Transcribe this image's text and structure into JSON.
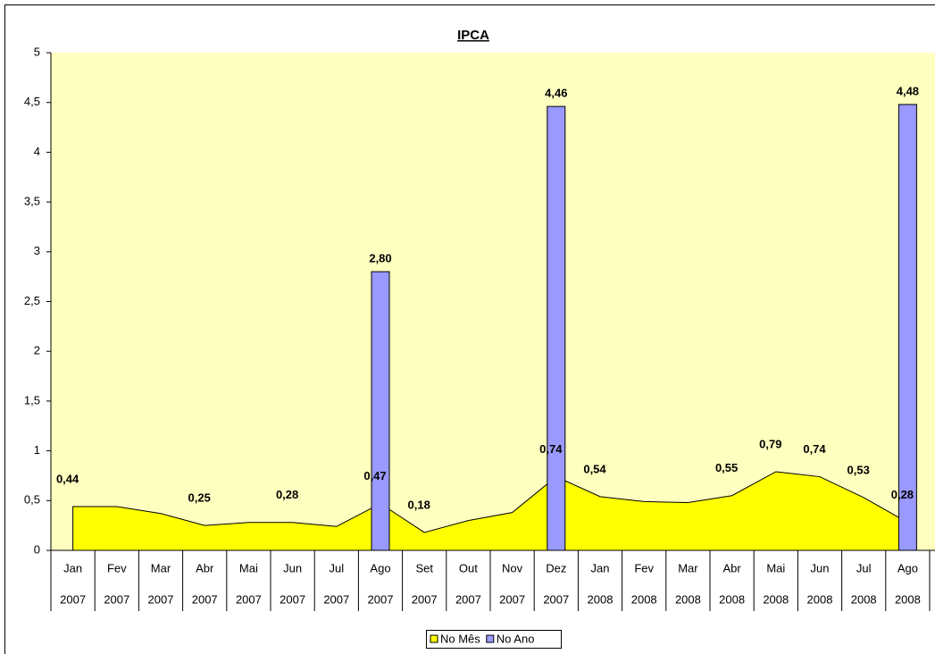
{
  "chart_data": {
    "type": "area-bar",
    "title": "IPCA",
    "categories": [
      "Jan",
      "Fev",
      "Mar",
      "Abr",
      "Mai",
      "Jun",
      "Jul",
      "Ago",
      "Set",
      "Out",
      "Nov",
      "Dez",
      "Jan",
      "Fev",
      "Mar",
      "Abr",
      "Mai",
      "Jun",
      "Jul",
      "Ago"
    ],
    "years": [
      "2007",
      "2007",
      "2007",
      "2007",
      "2007",
      "2007",
      "2007",
      "2007",
      "2007",
      "2007",
      "2007",
      "2007",
      "2008",
      "2008",
      "2008",
      "2008",
      "2008",
      "2008",
      "2008",
      "2008"
    ],
    "series": [
      {
        "name": "No Mês",
        "type": "area",
        "color": "#ffff00",
        "values": [
          0.44,
          0.44,
          0.37,
          0.25,
          0.28,
          0.28,
          0.24,
          0.47,
          0.18,
          0.3,
          0.38,
          0.74,
          0.54,
          0.49,
          0.48,
          0.55,
          0.79,
          0.74,
          0.53,
          0.28
        ],
        "value_labels": [
          "0,44",
          null,
          null,
          "0,25",
          null,
          "0,28",
          null,
          "0,47",
          "0,18",
          null,
          null,
          "0,74",
          "0,54",
          null,
          null,
          "0,55",
          "0,79",
          "0,74",
          "0,53",
          "0,28"
        ]
      },
      {
        "name": "No Ano",
        "type": "bar",
        "color": "#9999ff",
        "values": [
          null,
          null,
          null,
          null,
          null,
          null,
          null,
          2.8,
          null,
          null,
          null,
          4.46,
          null,
          null,
          null,
          null,
          null,
          null,
          null,
          4.48
        ],
        "value_labels": [
          null,
          null,
          null,
          null,
          null,
          null,
          null,
          "2,80",
          null,
          null,
          null,
          "4,46",
          null,
          null,
          null,
          null,
          null,
          null,
          null,
          "4,48"
        ]
      }
    ],
    "ylim": [
      0,
      5
    ],
    "yticks": [
      0,
      {
        "value": 0.5,
        "label": "0,5"
      },
      1,
      {
        "value": 1.5,
        "label": "1,5"
      },
      2,
      {
        "value": 2.5,
        "label": "2,5"
      },
      3,
      {
        "value": 3.5,
        "label": "3,5"
      },
      4,
      {
        "value": 4.5,
        "label": "4,5"
      },
      5
    ],
    "grid": false,
    "background": "#ffffc0",
    "legend": "bottom"
  }
}
